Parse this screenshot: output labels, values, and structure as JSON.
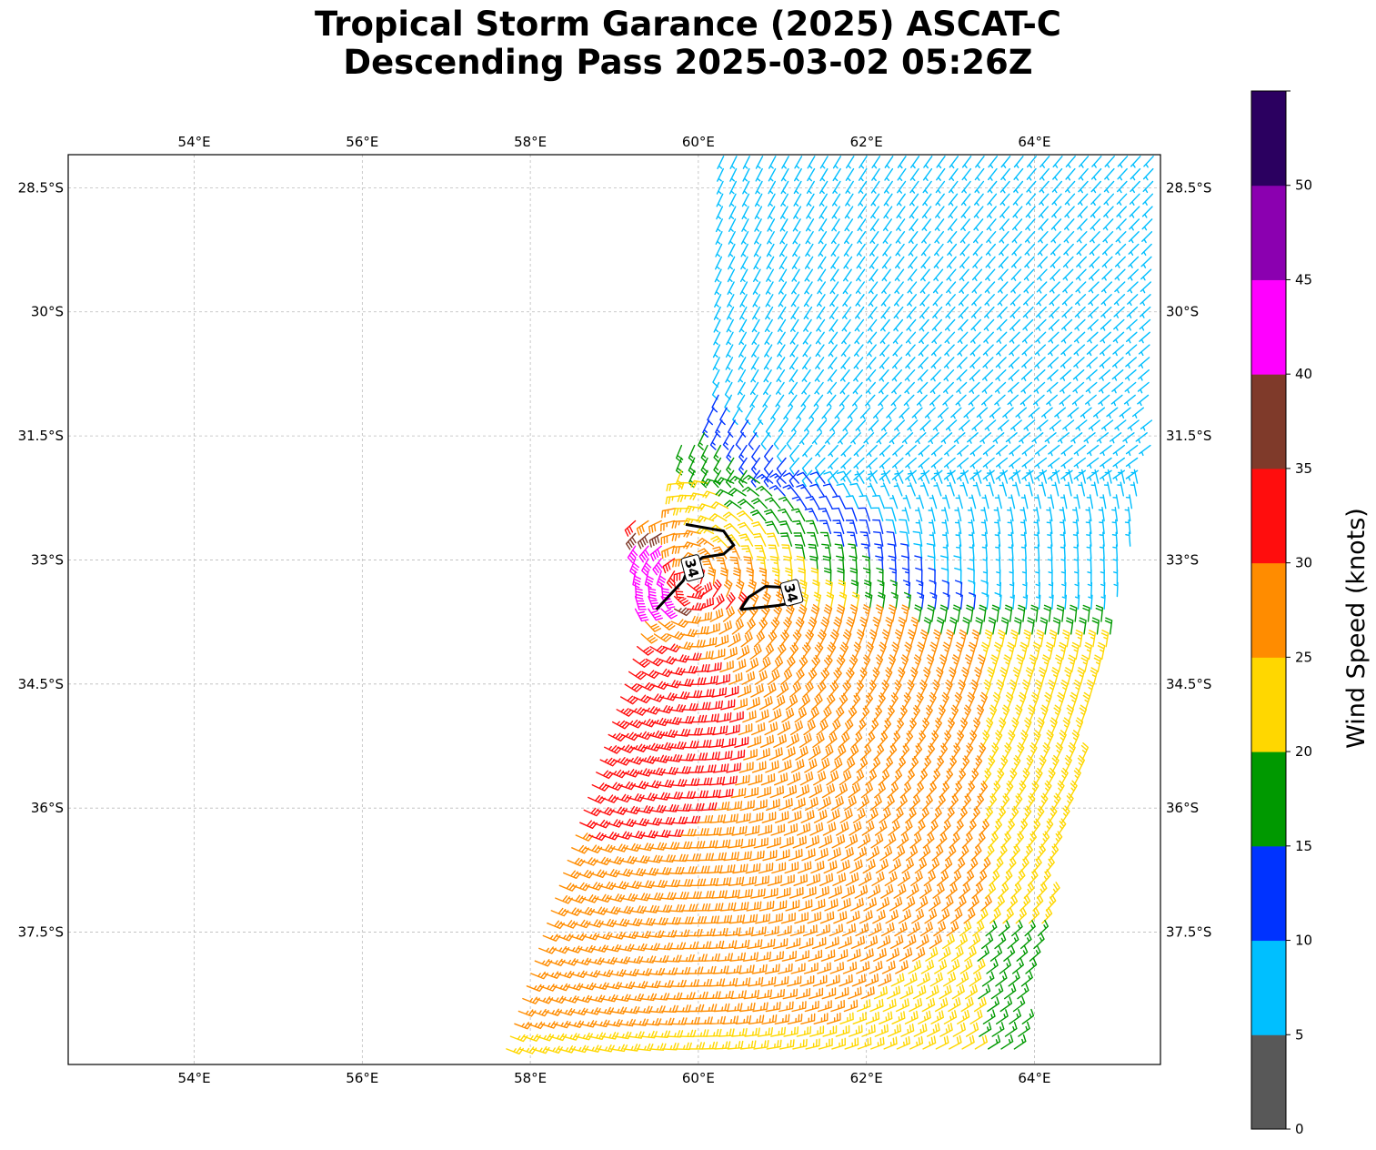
{
  "title": {
    "line1": "Tropical Storm Garance (2025) ASCAT-C",
    "line2": "Descending Pass 2025-03-02 05:26Z"
  },
  "map": {
    "lon_range": [
      52.5,
      65.5
    ],
    "lat_range": [
      -39.1,
      -28.1
    ],
    "lon_ticks": [
      {
        "value": 54,
        "label": "54°E"
      },
      {
        "value": 56,
        "label": "56°E"
      },
      {
        "value": 58,
        "label": "58°E"
      },
      {
        "value": 60,
        "label": "60°E"
      },
      {
        "value": 62,
        "label": "62°E"
      },
      {
        "value": 64,
        "label": "64°E"
      }
    ],
    "lat_ticks": [
      {
        "value": -28.5,
        "label": "28.5°S"
      },
      {
        "value": -30,
        "label": "30°S"
      },
      {
        "value": -31.5,
        "label": "31.5°S"
      },
      {
        "value": -33,
        "label": "33°S"
      },
      {
        "value": -34.5,
        "label": "34.5°S"
      },
      {
        "value": -36,
        "label": "36°S"
      },
      {
        "value": -37.5,
        "label": "37.5°S"
      }
    ],
    "gridlines": true,
    "contour": {
      "level_label": "34",
      "paths": [
        [
          [
            59.85,
            -32.57
          ],
          [
            60.3,
            -32.65
          ],
          [
            60.42,
            -32.82
          ],
          [
            60.3,
            -32.93
          ],
          [
            60.05,
            -32.97
          ],
          [
            59.88,
            -33.1
          ],
          [
            59.82,
            -33.25
          ],
          [
            59.5,
            -33.6
          ]
        ],
        [
          [
            60.5,
            -33.6
          ],
          [
            60.6,
            -33.45
          ],
          [
            60.8,
            -33.32
          ],
          [
            61.0,
            -33.33
          ],
          [
            61.12,
            -33.4
          ],
          [
            61.2,
            -33.5
          ],
          [
            60.95,
            -33.55
          ],
          [
            60.5,
            -33.6
          ]
        ]
      ],
      "labels": [
        {
          "lon": 59.92,
          "lat": -33.1,
          "text": "34"
        },
        {
          "lon": 61.1,
          "lat": -33.4,
          "text": "34"
        }
      ]
    }
  },
  "colorbar": {
    "label": "Wind Speed (knots)",
    "ticks": [
      "0",
      "5",
      "10",
      "15",
      "20",
      "25",
      "30",
      "35",
      "40",
      "45",
      "50"
    ],
    "bins": [
      {
        "from": 0,
        "to": 5,
        "color": "#585858"
      },
      {
        "from": 5,
        "to": 10,
        "color": "#00bfff"
      },
      {
        "from": 10,
        "to": 15,
        "color": "#0033ff"
      },
      {
        "from": 15,
        "to": 20,
        "color": "#009900"
      },
      {
        "from": 20,
        "to": 25,
        "color": "#ffd700"
      },
      {
        "from": 25,
        "to": 30,
        "color": "#ff8c00"
      },
      {
        "from": 30,
        "to": 35,
        "color": "#ff0d0d"
      },
      {
        "from": 35,
        "to": 40,
        "color": "#7f3a2a"
      },
      {
        "from": 40,
        "to": 45,
        "color": "#ff00ff"
      },
      {
        "from": 45,
        "to": 50,
        "color": "#8b00b0"
      },
      {
        "from": 50,
        "to": 55,
        "color": "#2b0060"
      }
    ]
  }
}
